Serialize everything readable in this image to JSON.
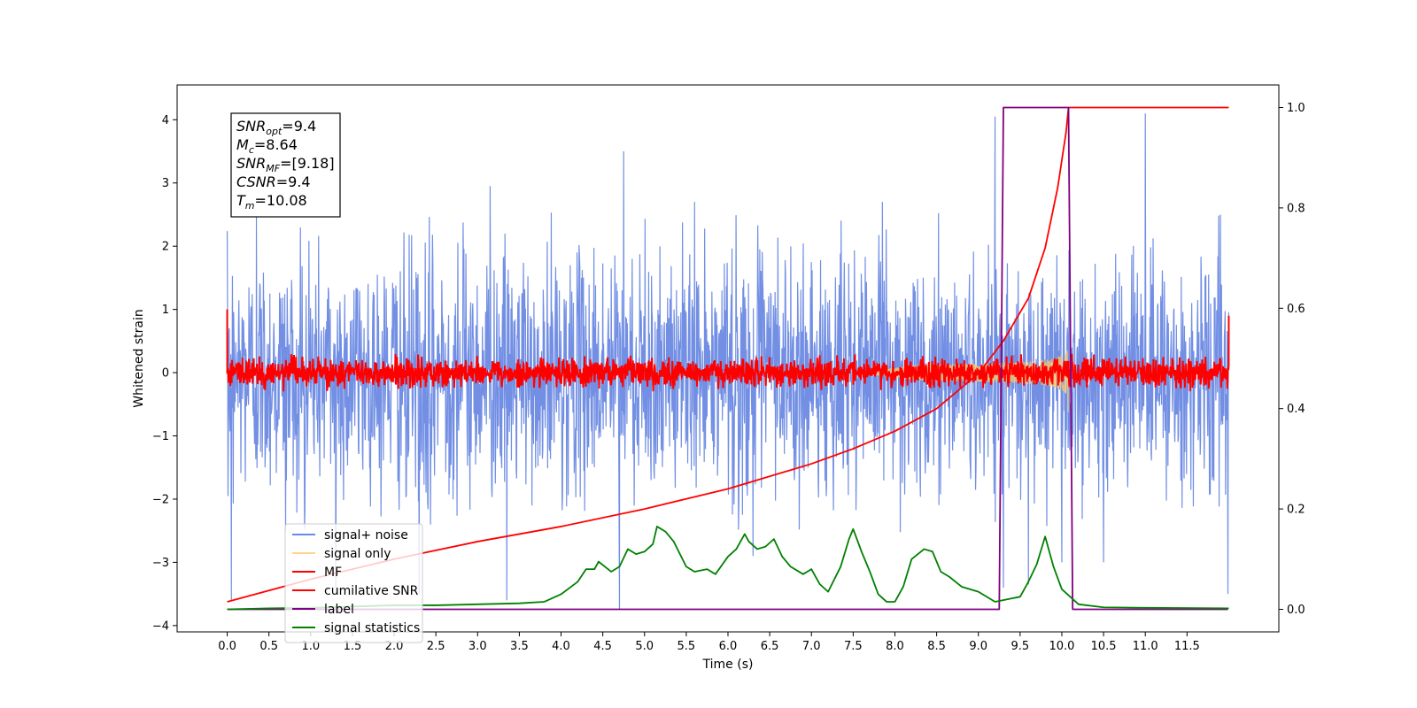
{
  "chart_data": {
    "type": "line",
    "xlabel": "Time (s)",
    "ylabel": "Whitened strain",
    "xlim": [
      -0.6,
      12.6
    ],
    "ylim_left": [
      -4.1,
      4.55
    ],
    "ylim_right": [
      -0.045,
      1.045
    ],
    "x_ticks": [
      0.0,
      0.5,
      1.0,
      1.5,
      2.0,
      2.5,
      3.0,
      3.5,
      4.0,
      4.5,
      5.0,
      5.5,
      6.0,
      6.5,
      7.0,
      7.5,
      8.0,
      8.5,
      9.0,
      9.5,
      10.0,
      10.5,
      11.0,
      11.5
    ],
    "x_tick_labels": [
      "0.0",
      "0.5",
      "1.0",
      "1.5",
      "2.0",
      "2.5",
      "3.0",
      "3.5",
      "4.0",
      "4.5",
      "5.0",
      "5.5",
      "6.0",
      "6.5",
      "7.0",
      "7.5",
      "8.0",
      "8.5",
      "9.0",
      "9.5",
      "10.0",
      "10.5",
      "11.0",
      "11.5"
    ],
    "y_left_ticks": [
      4,
      3,
      2,
      1,
      0,
      -1,
      -2,
      -3,
      -4
    ],
    "y_left_tick_labels": [
      "4",
      "3",
      "2",
      "1",
      "0",
      "−1",
      "−2",
      "−3",
      "−4"
    ],
    "y_right_ticks": [
      1.0,
      0.8,
      0.6,
      0.4,
      0.2,
      0.0
    ],
    "y_right_tick_labels": [
      "1.0",
      "0.8",
      "0.6",
      "0.4",
      "0.2",
      "0.0"
    ],
    "grid": false,
    "legend_position": "lower-left",
    "series": [
      {
        "name": "signal+ noise",
        "color": "#6a89e3",
        "axis": "left",
        "style": "noise",
        "x_range": [
          0.0,
          12.0
        ],
        "typical_range": [
          -1.7,
          1.7
        ],
        "spikes": [
          {
            "x": 0.05,
            "y": -3.6
          },
          {
            "x": 0.35,
            "y": 2.5
          },
          {
            "x": 0.7,
            "y": -2.5
          },
          {
            "x": 1.3,
            "y": -3.5
          },
          {
            "x": 2.3,
            "y": -3.5
          },
          {
            "x": 3.15,
            "y": 2.95
          },
          {
            "x": 3.35,
            "y": -3.6
          },
          {
            "x": 4.7,
            "y": -3.75
          },
          {
            "x": 4.75,
            "y": 3.5
          },
          {
            "x": 5.6,
            "y": 2.7
          },
          {
            "x": 6.3,
            "y": -2.9
          },
          {
            "x": 7.85,
            "y": 2.7
          },
          {
            "x": 9.2,
            "y": 4.05
          },
          {
            "x": 9.3,
            "y": -3.4
          },
          {
            "x": 9.6,
            "y": -3.35
          },
          {
            "x": 10.0,
            "y": -3.0
          },
          {
            "x": 10.5,
            "y": -3.0
          },
          {
            "x": 11.0,
            "y": 4.1
          },
          {
            "x": 11.9,
            "y": 2.5
          },
          {
            "x": 11.99,
            "y": -3.5
          }
        ]
      },
      {
        "name": "signal only",
        "color": "#ffc864",
        "axis": "left",
        "style": "chirp",
        "x_range": [
          7.5,
          10.08
        ],
        "amplitude_end": 0.7
      },
      {
        "name": "MF",
        "color": "#ff0000",
        "axis": "left",
        "style": "noise",
        "x_range": [
          0.0,
          12.0
        ],
        "typical_range": [
          -0.2,
          0.2
        ],
        "edge_values": [
          1.0,
          0.9
        ]
      },
      {
        "name": "cumilative SNR",
        "color": "#ff0000",
        "axis": "right",
        "style": "curve",
        "x": [
          0.0,
          1.0,
          2.0,
          3.0,
          4.0,
          5.0,
          6.0,
          7.0,
          7.5,
          8.0,
          8.5,
          9.0,
          9.3,
          9.6,
          9.8,
          9.95,
          10.05,
          10.08,
          12.0
        ],
        "y": [
          0.015,
          0.06,
          0.1,
          0.135,
          0.165,
          0.2,
          0.24,
          0.29,
          0.32,
          0.355,
          0.4,
          0.47,
          0.535,
          0.62,
          0.72,
          0.84,
          0.95,
          1.0,
          1.0
        ]
      },
      {
        "name": "label",
        "color": "#800080",
        "axis": "right",
        "style": "step",
        "x": [
          0.0,
          9.25,
          9.3,
          10.08,
          10.13,
          11.99
        ],
        "y": [
          0.0,
          0.0,
          1.0,
          1.0,
          0.0,
          0.0
        ]
      },
      {
        "name": "signal statistics",
        "color": "#008000",
        "axis": "right",
        "style": "curve",
        "x": [
          0.0,
          0.5,
          1.0,
          2.0,
          2.5,
          3.0,
          3.5,
          3.8,
          4.0,
          4.2,
          4.3,
          4.4,
          4.45,
          4.6,
          4.7,
          4.8,
          4.9,
          5.0,
          5.1,
          5.15,
          5.25,
          5.35,
          5.5,
          5.6,
          5.75,
          5.85,
          6.0,
          6.1,
          6.2,
          6.25,
          6.35,
          6.45,
          6.55,
          6.65,
          6.75,
          6.9,
          7.0,
          7.1,
          7.2,
          7.35,
          7.45,
          7.5,
          7.6,
          7.7,
          7.8,
          7.9,
          8.0,
          8.1,
          8.2,
          8.35,
          8.45,
          8.55,
          8.65,
          8.8,
          9.0,
          9.2,
          9.35,
          9.5,
          9.6,
          9.7,
          9.8,
          9.9,
          10.0,
          10.2,
          10.5,
          11.0,
          12.0
        ],
        "y": [
          0.0,
          0.002,
          0.003,
          0.008,
          0.008,
          0.01,
          0.012,
          0.015,
          0.03,
          0.055,
          0.08,
          0.08,
          0.095,
          0.075,
          0.085,
          0.12,
          0.11,
          0.115,
          0.13,
          0.165,
          0.155,
          0.135,
          0.085,
          0.075,
          0.08,
          0.07,
          0.105,
          0.12,
          0.15,
          0.135,
          0.12,
          0.125,
          0.14,
          0.105,
          0.085,
          0.07,
          0.08,
          0.05,
          0.035,
          0.085,
          0.14,
          0.16,
          0.115,
          0.075,
          0.03,
          0.015,
          0.015,
          0.045,
          0.1,
          0.12,
          0.115,
          0.075,
          0.065,
          0.045,
          0.035,
          0.015,
          0.02,
          0.025,
          0.055,
          0.09,
          0.145,
          0.085,
          0.04,
          0.01,
          0.004,
          0.003,
          0.002
        ]
      }
    ],
    "info_box": [
      {
        "sym": "SNR",
        "sub": "opt",
        "val": "=9.4"
      },
      {
        "sym": "M",
        "sub": "c",
        "val": "=8.64"
      },
      {
        "sym": "SNR",
        "sub": "MF",
        "val": "=[9.18]"
      },
      {
        "sym": "CSNR",
        "sub": "",
        "val": "=9.4"
      },
      {
        "sym": "T",
        "sub": "m",
        "val": "=10.08"
      }
    ]
  }
}
